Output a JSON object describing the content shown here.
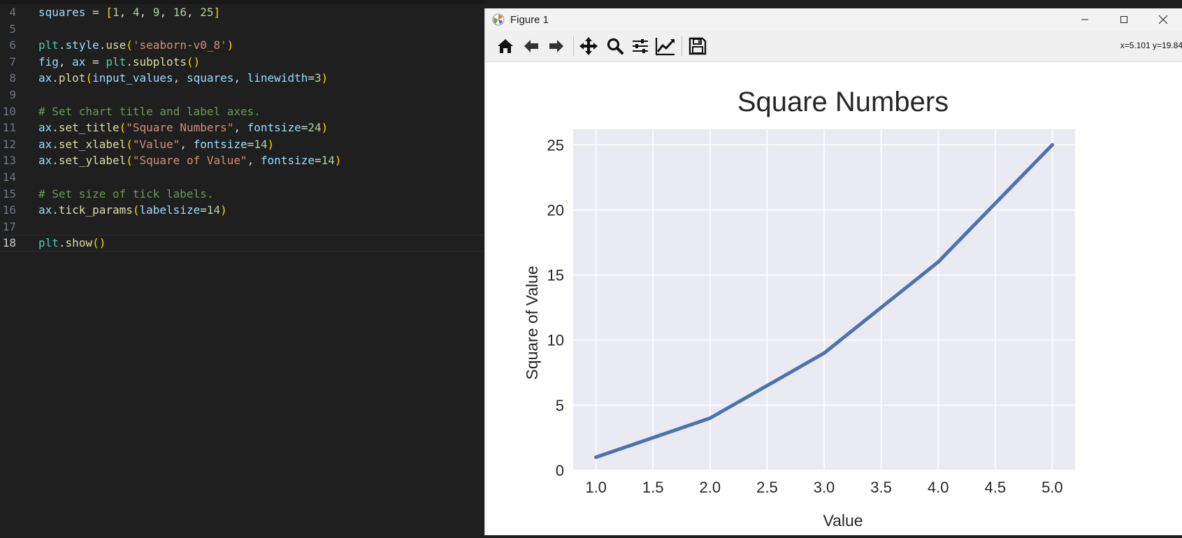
{
  "editor": {
    "lines": [
      {
        "n": "4",
        "tokens": [
          [
            "var",
            "squares"
          ],
          [
            "op",
            " = "
          ],
          [
            "br1",
            "["
          ],
          [
            "num",
            "1"
          ],
          [
            "op",
            ", "
          ],
          [
            "num",
            "4"
          ],
          [
            "op",
            ", "
          ],
          [
            "num",
            "9"
          ],
          [
            "op",
            ", "
          ],
          [
            "num",
            "16"
          ],
          [
            "op",
            ", "
          ],
          [
            "num",
            "25"
          ],
          [
            "br1",
            "]"
          ]
        ]
      },
      {
        "n": "5",
        "tokens": []
      },
      {
        "n": "6",
        "tokens": [
          [
            "mod",
            "plt"
          ],
          [
            "op",
            "."
          ],
          [
            "var",
            "style"
          ],
          [
            "op",
            "."
          ],
          [
            "fn",
            "use"
          ],
          [
            "br1",
            "("
          ],
          [
            "str",
            "'seaborn-v0_8'"
          ],
          [
            "br1",
            ")"
          ]
        ]
      },
      {
        "n": "7",
        "tokens": [
          [
            "var",
            "fig"
          ],
          [
            "op",
            ", "
          ],
          [
            "var",
            "ax"
          ],
          [
            "op",
            " = "
          ],
          [
            "mod",
            "plt"
          ],
          [
            "op",
            "."
          ],
          [
            "fn",
            "subplots"
          ],
          [
            "br1",
            "()"
          ]
        ]
      },
      {
        "n": "8",
        "tokens": [
          [
            "var",
            "ax"
          ],
          [
            "op",
            "."
          ],
          [
            "fn",
            "plot"
          ],
          [
            "br1",
            "("
          ],
          [
            "var",
            "input_values"
          ],
          [
            "op",
            ", "
          ],
          [
            "var",
            "squares"
          ],
          [
            "op",
            ", "
          ],
          [
            "var",
            "linewidth"
          ],
          [
            "op",
            "="
          ],
          [
            "num",
            "3"
          ],
          [
            "br1",
            ")"
          ]
        ]
      },
      {
        "n": "9",
        "tokens": []
      },
      {
        "n": "10",
        "tokens": [
          [
            "cm",
            "# Set chart title and label axes."
          ]
        ]
      },
      {
        "n": "11",
        "tokens": [
          [
            "var",
            "ax"
          ],
          [
            "op",
            "."
          ],
          [
            "fn",
            "set_title"
          ],
          [
            "br1",
            "("
          ],
          [
            "str",
            "\"Square Numbers\""
          ],
          [
            "op",
            ", "
          ],
          [
            "var",
            "fontsize"
          ],
          [
            "op",
            "="
          ],
          [
            "num",
            "24"
          ],
          [
            "br1",
            ")"
          ]
        ]
      },
      {
        "n": "12",
        "tokens": [
          [
            "var",
            "ax"
          ],
          [
            "op",
            "."
          ],
          [
            "fn",
            "set_xlabel"
          ],
          [
            "br1",
            "("
          ],
          [
            "str",
            "\"Value\""
          ],
          [
            "op",
            ", "
          ],
          [
            "var",
            "fontsize"
          ],
          [
            "op",
            "="
          ],
          [
            "num",
            "14"
          ],
          [
            "br1",
            ")"
          ]
        ]
      },
      {
        "n": "13",
        "tokens": [
          [
            "var",
            "ax"
          ],
          [
            "op",
            "."
          ],
          [
            "fn",
            "set_ylabel"
          ],
          [
            "br1",
            "("
          ],
          [
            "str",
            "\"Square of Value\""
          ],
          [
            "op",
            ", "
          ],
          [
            "var",
            "fontsize"
          ],
          [
            "op",
            "="
          ],
          [
            "num",
            "14"
          ],
          [
            "br1",
            ")"
          ]
        ]
      },
      {
        "n": "14",
        "tokens": []
      },
      {
        "n": "15",
        "tokens": [
          [
            "cm",
            "# Set size of tick labels."
          ]
        ]
      },
      {
        "n": "16",
        "tokens": [
          [
            "var",
            "ax"
          ],
          [
            "op",
            "."
          ],
          [
            "fn",
            "tick_params"
          ],
          [
            "br1",
            "("
          ],
          [
            "var",
            "labelsize"
          ],
          [
            "op",
            "="
          ],
          [
            "num",
            "14"
          ],
          [
            "br1",
            ")"
          ]
        ]
      },
      {
        "n": "17",
        "tokens": []
      },
      {
        "n": "18",
        "tokens": [
          [
            "mod",
            "plt"
          ],
          [
            "op",
            "."
          ],
          [
            "fn",
            "show"
          ],
          [
            "br1",
            "()"
          ]
        ],
        "active": true
      }
    ]
  },
  "window": {
    "title": "Figure 1",
    "coords_readout": "x=5.101 y=19.84"
  },
  "toolbar": {
    "buttons": [
      "home-icon",
      "back-arrow-icon",
      "forward-arrow-icon",
      "pan-move-icon",
      "zoom-magnifier-icon",
      "configure-subplots-icon",
      "edit-axis-icon",
      "save-figure-icon"
    ]
  },
  "colors": {
    "plot_background": "#eaeaf2",
    "line": "#4c72b0",
    "grid": "#ffffff"
  },
  "chart_data": {
    "type": "line",
    "title": "Square Numbers",
    "xlabel": "Value",
    "ylabel": "Square of Value",
    "x": [
      1,
      2,
      3,
      4,
      5
    ],
    "series": [
      {
        "values": [
          1,
          4,
          9,
          16,
          25
        ]
      }
    ],
    "xlim": [
      0.8,
      5.2
    ],
    "ylim": [
      0,
      26.2
    ],
    "xticks": [
      "1.0",
      "1.5",
      "2.0",
      "2.5",
      "3.0",
      "3.5",
      "4.0",
      "4.5",
      "5.0"
    ],
    "xtick_values": [
      1.0,
      1.5,
      2.0,
      2.5,
      3.0,
      3.5,
      4.0,
      4.5,
      5.0
    ],
    "yticks": [
      "0",
      "5",
      "10",
      "15",
      "20",
      "25"
    ],
    "ytick_values": [
      0,
      5,
      10,
      15,
      20,
      25
    ],
    "grid": true
  }
}
